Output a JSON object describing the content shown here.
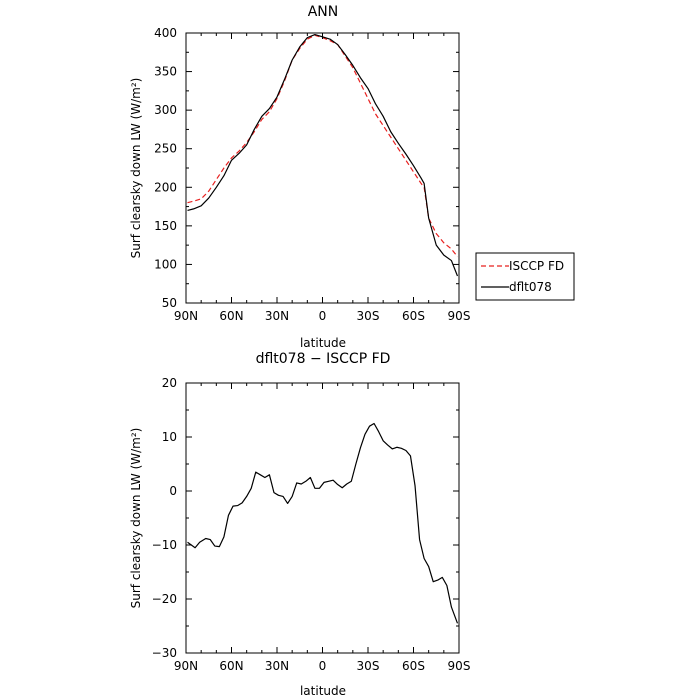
{
  "chart_data": [
    {
      "type": "line",
      "title": "ANN",
      "xlabel": "latitude",
      "ylabel": "Surf clearsky down LW (W/m²)",
      "xlim": [
        90,
        -90
      ],
      "ylim": [
        50,
        400
      ],
      "xticks": [
        90,
        60,
        30,
        0,
        -30,
        -60,
        -90
      ],
      "xtick_labels": [
        "90N",
        "60N",
        "30N",
        "0",
        "30S",
        "60S",
        "90S"
      ],
      "yticks": [
        50,
        100,
        150,
        200,
        250,
        300,
        350,
        400
      ],
      "ytick_labels": [
        "50",
        "100",
        "150",
        "200",
        "250",
        "300",
        "350",
        "400"
      ],
      "grid": false,
      "legend_position": "outside-right",
      "series": [
        {
          "name": "ISCCP FD",
          "color": "#e8201f",
          "dash": "dashed",
          "x": [
            89,
            85,
            80,
            75,
            70,
            65,
            60,
            55,
            50,
            45,
            40,
            35,
            30,
            25,
            20,
            15,
            10,
            5,
            0,
            -5,
            -10,
            -15,
            -20,
            -25,
            -30,
            -35,
            -40,
            -45,
            -50,
            -55,
            -60,
            -65,
            -67,
            -70,
            -75,
            -80,
            -85,
            -89
          ],
          "y": [
            180,
            182,
            185,
            195,
            210,
            225,
            238,
            247,
            258,
            272,
            288,
            298,
            315,
            338,
            365,
            380,
            392,
            397,
            394,
            390,
            385,
            370,
            355,
            335,
            315,
            295,
            280,
            265,
            250,
            235,
            220,
            205,
            200,
            160,
            140,
            128,
            120,
            110
          ]
        },
        {
          "name": "dflt078",
          "color": "#000000",
          "dash": "solid",
          "x": [
            89,
            85,
            80,
            75,
            70,
            65,
            60,
            55,
            50,
            45,
            40,
            35,
            30,
            25,
            20,
            15,
            10,
            5,
            0,
            -5,
            -10,
            -15,
            -20,
            -25,
            -30,
            -35,
            -40,
            -45,
            -50,
            -55,
            -60,
            -65,
            -67,
            -70,
            -75,
            -80,
            -85,
            -89
          ],
          "y": [
            170,
            172,
            176,
            186,
            200,
            215,
            235,
            244,
            255,
            275,
            292,
            302,
            317,
            340,
            365,
            382,
            394,
            398,
            395,
            392,
            385,
            372,
            358,
            342,
            328,
            308,
            292,
            272,
            257,
            243,
            228,
            212,
            205,
            160,
            125,
            112,
            105,
            85
          ]
        }
      ]
    },
    {
      "type": "line",
      "title": "dflt078 − ISCCP FD",
      "xlabel": "latitude",
      "ylabel": "Surf clearsky down LW (W/m²)",
      "xlim": [
        90,
        -90
      ],
      "ylim": [
        -30,
        20
      ],
      "xticks": [
        90,
        60,
        30,
        0,
        -30,
        -60,
        -90
      ],
      "xtick_labels": [
        "90N",
        "60N",
        "30N",
        "0",
        "30S",
        "60S",
        "90S"
      ],
      "yticks": [
        -30,
        -20,
        -10,
        0,
        10,
        20
      ],
      "ytick_labels": [
        "−30",
        "−20",
        "−10",
        "0",
        "10",
        "20"
      ],
      "grid": false,
      "series": [
        {
          "color": "#000000",
          "dash": "solid",
          "x": [
            89,
            84,
            81,
            77,
            74,
            71,
            68,
            65,
            62,
            59,
            56,
            53,
            50,
            47,
            44,
            41,
            38,
            35,
            32,
            29,
            26,
            23,
            20,
            17,
            14,
            11,
            8,
            5,
            2,
            -1,
            -4,
            -7,
            -10,
            -13,
            -16,
            -19,
            -22,
            -25,
            -28,
            -31,
            -34,
            -37,
            -40,
            -43,
            -46,
            -49,
            -52,
            -55,
            -58,
            -61,
            -64,
            -67,
            -70,
            -73,
            -76,
            -79,
            -82,
            -85,
            -89
          ],
          "y": [
            -9.5,
            -10.5,
            -9.5,
            -8.8,
            -9.0,
            -10.2,
            -10.3,
            -8.5,
            -4.5,
            -2.8,
            -2.7,
            -2.2,
            -1.0,
            0.5,
            3.5,
            3.0,
            2.5,
            3.0,
            -0.3,
            -0.8,
            -1.0,
            -2.3,
            -1.0,
            1.5,
            1.3,
            1.8,
            2.5,
            0.5,
            0.5,
            1.6,
            1.8,
            2.0,
            1.2,
            0.6,
            1.3,
            1.8,
            5.0,
            8.0,
            10.5,
            12.0,
            12.5,
            11.0,
            9.3,
            8.5,
            7.8,
            8.1,
            7.9,
            7.5,
            6.5,
            1.0,
            -9.0,
            -12.5,
            -14.0,
            -16.8,
            -16.5,
            -16.0,
            -17.5,
            -21.5,
            -24.5
          ]
        }
      ]
    }
  ]
}
